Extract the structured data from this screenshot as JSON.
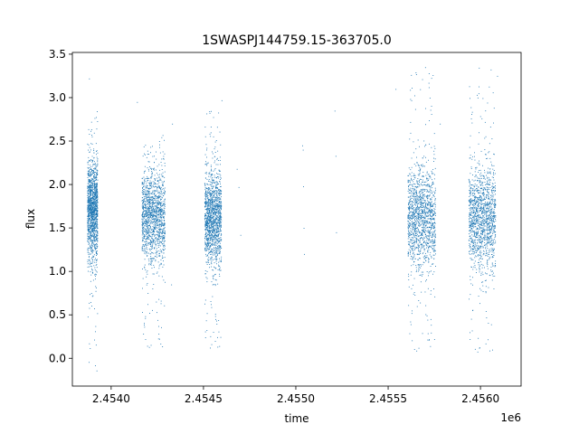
{
  "chart_data": {
    "type": "scatter",
    "title": "1SWASPJ144759.15-363705.0",
    "xlabel": "time",
    "ylabel": "flux",
    "x_offset_label": "1e6",
    "xlim": [
      2453790,
      2456220
    ],
    "ylim": [
      -0.32,
      3.52
    ],
    "x_ticks": [
      2454000,
      2454500,
      2455000,
      2455500,
      2456000
    ],
    "x_tick_labels": [
      "2.4540",
      "2.4545",
      "2.4550",
      "2.4555",
      "2.4560"
    ],
    "y_ticks": [
      0.0,
      0.5,
      1.0,
      1.5,
      2.0,
      2.5,
      3.0,
      3.5
    ],
    "y_tick_labels": [
      "0.0",
      "0.5",
      "1.0",
      "1.5",
      "2.0",
      "2.5",
      "3.0",
      "3.5"
    ],
    "grid": false,
    "marker_color": "#1f77b4",
    "observing_seasons": [
      {
        "t_start": 2453870,
        "t_end": 2453925,
        "flux_center": 1.7,
        "flux_spread": 0.28,
        "flux_min": -0.15,
        "flux_max": 2.85
      },
      {
        "t_start": 2454165,
        "t_end": 2454290,
        "flux_center": 1.62,
        "flux_spread": 0.27,
        "flux_min": 0.1,
        "flux_max": 2.6
      },
      {
        "t_start": 2454505,
        "t_end": 2454595,
        "flux_center": 1.6,
        "flux_spread": 0.27,
        "flux_min": 0.1,
        "flux_max": 2.85
      },
      {
        "t_start": 2455605,
        "t_end": 2455755,
        "flux_center": 1.6,
        "flux_spread": 0.3,
        "flux_min": 0.05,
        "flux_max": 3.3
      },
      {
        "t_start": 2455935,
        "t_end": 2456080,
        "flux_center": 1.6,
        "flux_spread": 0.3,
        "flux_min": 0.05,
        "flux_max": 3.35
      }
    ],
    "isolated_points": [
      {
        "x": 2454680,
        "y": 2.18
      },
      {
        "x": 2454690,
        "y": 1.97
      },
      {
        "x": 2454700,
        "y": 1.42
      },
      {
        "x": 2455035,
        "y": 2.45
      },
      {
        "x": 2455038,
        "y": 2.4
      },
      {
        "x": 2455040,
        "y": 1.98
      },
      {
        "x": 2455042,
        "y": 1.5
      },
      {
        "x": 2455044,
        "y": 1.2
      },
      {
        "x": 2455210,
        "y": 2.85
      },
      {
        "x": 2455215,
        "y": 2.33
      },
      {
        "x": 2455218,
        "y": 1.45
      },
      {
        "x": 2454330,
        "y": 2.7
      },
      {
        "x": 2454325,
        "y": 0.85
      },
      {
        "x": 2454140,
        "y": 2.95
      },
      {
        "x": 2453880,
        "y": 3.22
      },
      {
        "x": 2454598,
        "y": 2.97
      },
      {
        "x": 2455540,
        "y": 3.1
      },
      {
        "x": 2455700,
        "y": 3.35
      },
      {
        "x": 2455780,
        "y": 2.7
      },
      {
        "x": 2455720,
        "y": 3.28
      },
      {
        "x": 2456090,
        "y": 3.25
      }
    ]
  }
}
